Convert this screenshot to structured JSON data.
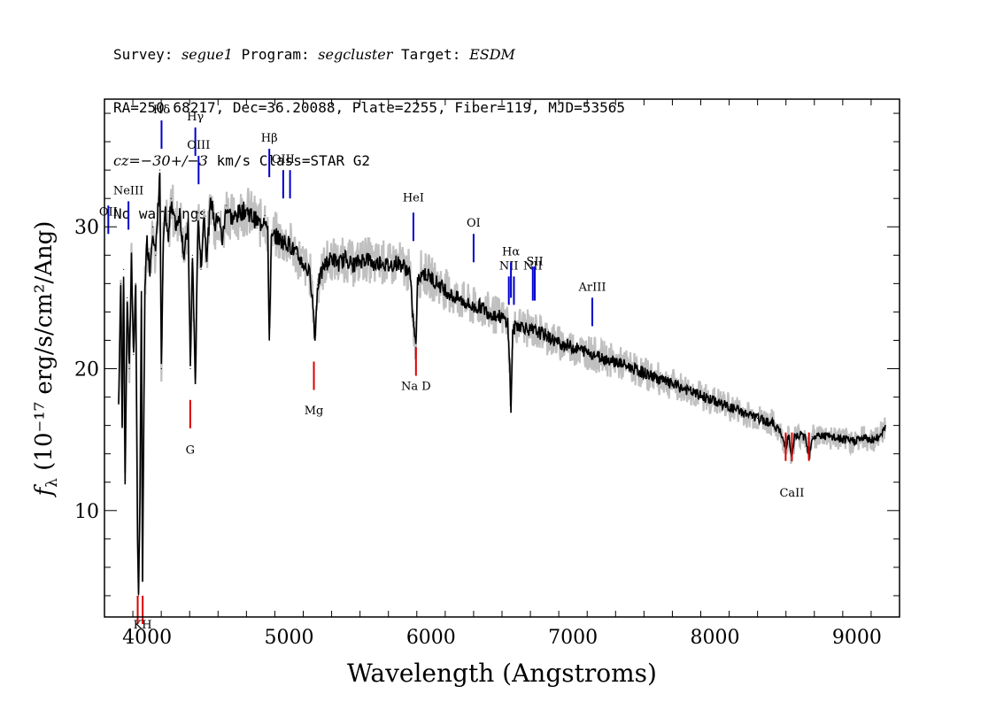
{
  "header": {
    "survey_label": "Survey:",
    "survey": "segue1",
    "program_label": "Program:",
    "program": "segcluster",
    "target_label": "Target:",
    "target": "ESDM",
    "line2": "RA=250.68217, Dec=36.20088, Plate=2255, Fiber=119, MJD=53565",
    "cz_prefix": "cz=",
    "cz_value": "−30+/−3",
    "cz_suffix": " km/s Class=STAR G2",
    "line4": "No warnings."
  },
  "chart_data": {
    "type": "line",
    "title": "",
    "xlabel": "Wavelength (Angstroms)",
    "ylabel": "fλ (10⁻¹⁷ erg/s/cm²/Ang)",
    "xlim": [
      3700,
      9300
    ],
    "ylim": [
      2.5,
      39
    ],
    "xticks": [
      4000,
      5000,
      6000,
      7000,
      8000,
      9000
    ],
    "yticks": [
      10,
      20,
      30
    ],
    "series": [
      {
        "color": "#000000",
        "points": [
          [
            3800,
            17.5
          ],
          [
            3815,
            26
          ],
          [
            3825,
            16
          ],
          [
            3835,
            27
          ],
          [
            3845,
            12
          ],
          [
            3860,
            25
          ],
          [
            3875,
            20
          ],
          [
            3890,
            28
          ],
          [
            3905,
            21
          ],
          [
            3920,
            26
          ],
          [
            3933,
            8
          ],
          [
            3940,
            4
          ],
          [
            3950,
            11
          ],
          [
            3960,
            25
          ],
          [
            3968,
            5
          ],
          [
            3975,
            14
          ],
          [
            3985,
            26
          ],
          [
            4000,
            29
          ],
          [
            4020,
            27
          ],
          [
            4040,
            30
          ],
          [
            4060,
            28
          ],
          [
            4080,
            32
          ],
          [
            4090,
            34
          ],
          [
            4101,
            20
          ],
          [
            4115,
            29
          ],
          [
            4130,
            31
          ],
          [
            4150,
            29
          ],
          [
            4170,
            32
          ],
          [
            4200,
            30
          ],
          [
            4230,
            31
          ],
          [
            4260,
            28
          ],
          [
            4290,
            30
          ],
          [
            4305,
            20
          ],
          [
            4320,
            28
          ],
          [
            4340,
            19
          ],
          [
            4360,
            31
          ],
          [
            4380,
            27
          ],
          [
            4400,
            31
          ],
          [
            4420,
            28
          ],
          [
            4450,
            32
          ],
          [
            4480,
            30
          ],
          [
            4500,
            31
          ],
          [
            4530,
            29
          ],
          [
            4560,
            31.5
          ],
          [
            4600,
            30.5
          ],
          [
            4650,
            31
          ],
          [
            4700,
            31.2
          ],
          [
            4750,
            30.6
          ],
          [
            4800,
            30.2
          ],
          [
            4830,
            30.8
          ],
          [
            4850,
            29.5
          ],
          [
            4861,
            22
          ],
          [
            4875,
            29
          ],
          [
            4900,
            29.4
          ],
          [
            4950,
            29
          ],
          [
            5000,
            28.8
          ],
          [
            5050,
            28.1
          ],
          [
            5100,
            27.4
          ],
          [
            5150,
            26.6
          ],
          [
            5172,
            24
          ],
          [
            5183,
            22
          ],
          [
            5200,
            25.9
          ],
          [
            5250,
            27.3
          ],
          [
            5300,
            27.8
          ],
          [
            5350,
            27.4
          ],
          [
            5400,
            27.8
          ],
          [
            5450,
            27.3
          ],
          [
            5500,
            27.6
          ],
          [
            5550,
            27.8
          ],
          [
            5600,
            27.3
          ],
          [
            5650,
            27.6
          ],
          [
            5700,
            27.2
          ],
          [
            5750,
            27.5
          ],
          [
            5800,
            27.3
          ],
          [
            5850,
            26.8
          ],
          [
            5870,
            24
          ],
          [
            5893,
            21.5
          ],
          [
            5905,
            26
          ],
          [
            5930,
            26.8
          ],
          [
            5970,
            26.6
          ],
          [
            6000,
            26.4
          ],
          [
            6050,
            26.0
          ],
          [
            6100,
            25.6
          ],
          [
            6150,
            25.1
          ],
          [
            6200,
            24.9
          ],
          [
            6250,
            24.6
          ],
          [
            6300,
            24.3
          ],
          [
            6350,
            24.4
          ],
          [
            6400,
            24.0
          ],
          [
            6450,
            23.8
          ],
          [
            6500,
            23.6
          ],
          [
            6540,
            23.3
          ],
          [
            6555,
            20
          ],
          [
            6563,
            17
          ],
          [
            6575,
            22.5
          ],
          [
            6600,
            23.1
          ],
          [
            6650,
            23.0
          ],
          [
            6700,
            22.7
          ],
          [
            6750,
            22.6
          ],
          [
            6800,
            22.4
          ],
          [
            6850,
            22.1
          ],
          [
            6900,
            21.8
          ],
          [
            6950,
            21.7
          ],
          [
            7000,
            21.5
          ],
          [
            7100,
            21.2
          ],
          [
            7200,
            20.8
          ],
          [
            7300,
            20.5
          ],
          [
            7400,
            20.1
          ],
          [
            7500,
            19.7
          ],
          [
            7600,
            19.3
          ],
          [
            7700,
            18.9
          ],
          [
            7800,
            18.5
          ],
          [
            7900,
            18.1
          ],
          [
            8000,
            17.7
          ],
          [
            8100,
            17.3
          ],
          [
            8200,
            16.9
          ],
          [
            8300,
            16.5
          ],
          [
            8400,
            16.2
          ],
          [
            8450,
            15.7
          ],
          [
            8498,
            14.5
          ],
          [
            8520,
            15.3
          ],
          [
            8542,
            13.5
          ],
          [
            8560,
            15.2
          ],
          [
            8600,
            15.3
          ],
          [
            8640,
            15.2
          ],
          [
            8662,
            13.8
          ],
          [
            8685,
            15.2
          ],
          [
            8750,
            15.3
          ],
          [
            8800,
            15.2
          ],
          [
            8850,
            15.1
          ],
          [
            8900,
            15.0
          ],
          [
            8950,
            14.9
          ],
          [
            9000,
            15.0
          ],
          [
            9050,
            15.1
          ],
          [
            9100,
            15.0
          ],
          [
            9150,
            15.1
          ],
          [
            9200,
            16.0
          ]
        ]
      }
    ],
    "emission_lines": [
      {
        "label": "OII",
        "x": 3727,
        "y_top": 31.5,
        "y_bottom": 29.5,
        "label_y": 30.8
      },
      {
        "label": "NeIII",
        "x": 3869,
        "y_top": 31.8,
        "y_bottom": 29.8,
        "label_y": 32.3
      },
      {
        "label": "Hδ",
        "x": 4102,
        "y_top": 37.5,
        "y_bottom": 35.5,
        "label_y": 38.0
      },
      {
        "label": "Hγ",
        "x": 4340,
        "y_top": 37.0,
        "y_bottom": 35.0,
        "label_y": 37.5
      },
      {
        "label": "OIII",
        "x": 4363,
        "y_top": 35.0,
        "y_bottom": 33.0,
        "label_y": 35.5
      },
      {
        "label": "Hβ",
        "x": 4861,
        "y_top": 35.5,
        "y_bottom": 33.5,
        "label_y": 36.0
      },
      {
        "label": "OIII",
        "x": 4959,
        "y_top": 34.0,
        "y_bottom": 32.0,
        "label_y": 34.5
      },
      {
        "label": "",
        "x": 5007,
        "y_top": 34.0,
        "y_bottom": 32.0,
        "label_y": 34.5
      },
      {
        "label": "HeI",
        "x": 5876,
        "y_top": 31.0,
        "y_bottom": 29.0,
        "label_y": 31.8
      },
      {
        "label": "OI",
        "x": 6300,
        "y_top": 29.5,
        "y_bottom": 27.5,
        "label_y": 30.0
      },
      {
        "label": "NII",
        "x": 6548,
        "y_top": 26.5,
        "y_bottom": 24.5,
        "label_y": 27.0
      },
      {
        "label": "Hα",
        "x": 6563,
        "y_top": 27.5,
        "y_bottom": 25.0,
        "label_y": 28.0
      },
      {
        "label": "",
        "x": 6584,
        "y_top": 26.5,
        "y_bottom": 24.5,
        "label_y": 27.0
      },
      {
        "label": "NII",
        "x": 6717,
        "y_top": 27.2,
        "y_bottom": 24.8,
        "label_y": 27.0
      },
      {
        "label": "SII",
        "x": 6731,
        "y_top": 27.2,
        "y_bottom": 24.8,
        "label_y": 27.3
      },
      {
        "label": "ArIII",
        "x": 7136,
        "y_top": 25.0,
        "y_bottom": 23.0,
        "label_y": 25.5
      }
    ],
    "absorption_lines": [
      {
        "label": "",
        "x": 3934,
        "y_top": 4.0,
        "y_bottom": 2.0,
        "label_y": 1.7
      },
      {
        "label": "KH",
        "x": 3969,
        "y_top": 4.0,
        "y_bottom": 2.0,
        "label_y": 1.7
      },
      {
        "label": "G",
        "x": 4304,
        "y_top": 17.8,
        "y_bottom": 15.8,
        "label_y": 14.0
      },
      {
        "label": "Mg",
        "x": 5175,
        "y_top": 20.5,
        "y_bottom": 18.5,
        "label_y": 16.8
      },
      {
        "label": "Na D",
        "x": 5894,
        "y_top": 21.5,
        "y_bottom": 19.5,
        "label_y": 18.5
      },
      {
        "label": "",
        "x": 8498,
        "y_top": 15.5,
        "y_bottom": 13.5,
        "label_y": 11.0
      },
      {
        "label": "CaII",
        "x": 8542,
        "y_top": 15.5,
        "y_bottom": 13.5,
        "label_y": 11.0
      },
      {
        "label": "",
        "x": 8662,
        "y_top": 15.5,
        "y_bottom": 13.5,
        "label_y": 11.0
      }
    ],
    "colors": {
      "spectrum": "#000000",
      "error": "#c0c0c0",
      "emission": "#0000cc",
      "absorption": "#dd0000"
    }
  }
}
